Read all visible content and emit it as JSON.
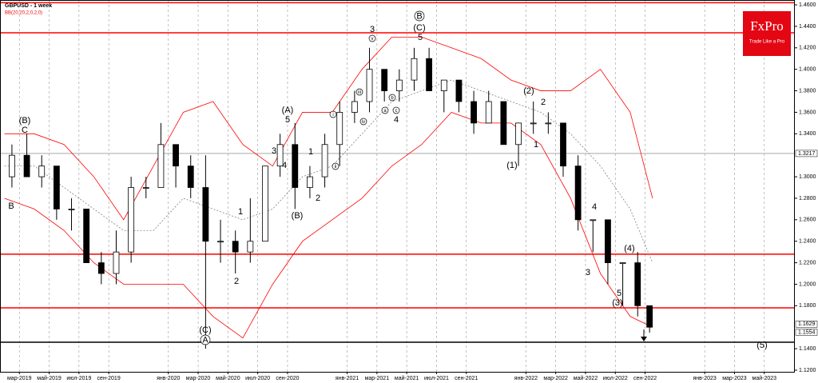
{
  "chart_data": {
    "type": "candlestick",
    "title": "GBPUSD - 1 week",
    "subtitle": "BB(20,20,2,0,2,0)",
    "logo": {
      "brand": "FxPro",
      "slogan": "Trade Like a Pro"
    },
    "xlim": [
      0.7,
      54.05
    ],
    "xticks": [
      {
        "value": 2,
        "label": "мар-2019"
      },
      {
        "value": 4,
        "label": "май-2019"
      },
      {
        "value": 6,
        "label": "июл-2019"
      },
      {
        "value": 8,
        "label": "сен-2019"
      },
      {
        "value": 12,
        "label": "янв-2020"
      },
      {
        "value": 14,
        "label": "мар-2020"
      },
      {
        "value": 16,
        "label": "май-2020"
      },
      {
        "value": 18,
        "label": "июл-2020"
      },
      {
        "value": 20,
        "label": "сен-2020"
      },
      {
        "value": 24,
        "label": "янв-2021"
      },
      {
        "value": 26,
        "label": "мар-2021"
      },
      {
        "value": 28,
        "label": "май-2021"
      },
      {
        "value": 30,
        "label": "июл-2021"
      },
      {
        "value": 32,
        "label": "сен-2021"
      },
      {
        "value": 36,
        "label": "янв-2022"
      },
      {
        "value": 38,
        "label": "мар-2022"
      },
      {
        "value": 40,
        "label": "май-2022"
      },
      {
        "value": 42,
        "label": "июл-2022"
      },
      {
        "value": 44,
        "label": "сен-2022"
      },
      {
        "value": 48,
        "label": "янв-2023"
      },
      {
        "value": 50,
        "label": "мар-2023"
      },
      {
        "value": 52,
        "label": "май-2023"
      }
    ],
    "ylim": [
      1.1185,
      1.4645
    ],
    "yticks": [
      {
        "value": 1.46,
        "label": "1.4600"
      },
      {
        "value": 1.44,
        "label": "1.4400"
      },
      {
        "value": 1.42,
        "label": "1.4200"
      },
      {
        "value": 1.4,
        "label": "1.4000"
      },
      {
        "value": 1.38,
        "label": "1.3800"
      },
      {
        "value": 1.36,
        "label": "1.3600"
      },
      {
        "value": 1.34,
        "label": "1.3400"
      },
      {
        "value": 1.3,
        "label": "1.3000"
      },
      {
        "value": 1.28,
        "label": "1.2800"
      },
      {
        "value": 1.26,
        "label": "1.2600"
      },
      {
        "value": 1.24,
        "label": "1.2400"
      },
      {
        "value": 1.22,
        "label": "1.2200"
      },
      {
        "value": 1.2,
        "label": "1.2000"
      },
      {
        "value": 1.18,
        "label": "1.1800"
      },
      {
        "value": 1.14,
        "label": "1.1400"
      },
      {
        "value": 1.12,
        "label": "1.1200"
      }
    ],
    "price_tags": [
      {
        "value": 1.3217,
        "label": "1.3217"
      },
      {
        "value": 1.1629,
        "label": "1.1629"
      },
      {
        "value": 1.1554,
        "label": "1.1554"
      }
    ],
    "levels": [
      {
        "value": 1.462,
        "color": "#ff0000"
      },
      {
        "value": 1.434,
        "color": "#ff0000"
      },
      {
        "value": 1.228,
        "color": "#ff0000"
      },
      {
        "value": 1.178,
        "color": "#ff0000"
      },
      {
        "value": 1.146,
        "color": "#000000"
      }
    ],
    "candles": {
      "x": [
        1.5,
        2.5,
        3.5,
        4.5,
        5.5,
        6.5,
        7.5,
        8.5,
        9.5,
        10.5,
        11.5,
        12.5,
        13.5,
        14.5,
        15.5,
        16.5,
        17.5,
        18.5,
        19.5,
        20.5,
        21.5,
        22.5,
        23.5,
        24.5,
        25.5,
        26.5,
        27.5,
        28.5,
        29.5,
        30.5,
        31.5,
        32.5,
        33.5,
        34.5,
        35.5,
        36.5,
        37.5,
        38.5,
        39.5,
        40.5,
        41.5,
        42.5,
        43.5,
        44.3
      ],
      "open": [
        1.3,
        1.32,
        1.3,
        1.31,
        1.27,
        1.27,
        1.22,
        1.21,
        1.23,
        1.29,
        1.29,
        1.33,
        1.31,
        1.29,
        1.24,
        1.24,
        1.23,
        1.24,
        1.31,
        1.33,
        1.29,
        1.3,
        1.33,
        1.36,
        1.37,
        1.4,
        1.38,
        1.39,
        1.41,
        1.38,
        1.39,
        1.37,
        1.35,
        1.37,
        1.33,
        1.35,
        1.35,
        1.35,
        1.31,
        1.26,
        1.26,
        1.22,
        1.22,
        1.18
      ],
      "high": [
        1.33,
        1.34,
        1.32,
        1.31,
        1.28,
        1.27,
        1.23,
        1.25,
        1.3,
        1.3,
        1.35,
        1.33,
        1.32,
        1.32,
        1.26,
        1.25,
        1.28,
        1.31,
        1.34,
        1.35,
        1.31,
        1.34,
        1.37,
        1.38,
        1.42,
        1.4,
        1.4,
        1.42,
        1.42,
        1.39,
        1.39,
        1.38,
        1.38,
        1.37,
        1.35,
        1.37,
        1.36,
        1.35,
        1.32,
        1.26,
        1.26,
        1.22,
        1.23,
        1.18
      ],
      "low": [
        1.29,
        1.3,
        1.29,
        1.26,
        1.25,
        1.22,
        1.2,
        1.2,
        1.22,
        1.28,
        1.29,
        1.29,
        1.28,
        1.14,
        1.22,
        1.21,
        1.22,
        1.24,
        1.3,
        1.27,
        1.28,
        1.29,
        1.31,
        1.35,
        1.36,
        1.37,
        1.37,
        1.38,
        1.38,
        1.36,
        1.36,
        1.34,
        1.35,
        1.33,
        1.31,
        1.34,
        1.34,
        1.3,
        1.25,
        1.23,
        1.2,
        1.18,
        1.17,
        1.155
      ],
      "close": [
        1.32,
        1.3,
        1.31,
        1.27,
        1.27,
        1.22,
        1.21,
        1.23,
        1.29,
        1.29,
        1.33,
        1.31,
        1.29,
        1.24,
        1.24,
        1.23,
        1.24,
        1.31,
        1.33,
        1.29,
        1.3,
        1.33,
        1.36,
        1.37,
        1.4,
        1.38,
        1.39,
        1.41,
        1.38,
        1.39,
        1.37,
        1.35,
        1.37,
        1.33,
        1.35,
        1.35,
        1.35,
        1.31,
        1.26,
        1.26,
        1.22,
        1.22,
        1.18,
        1.16
      ]
    },
    "bands": {
      "x": [
        1,
        3,
        5,
        7,
        9,
        11,
        13,
        15,
        17,
        19,
        21,
        23,
        25,
        27,
        29,
        31,
        33,
        35,
        37,
        39,
        41,
        43,
        44.5
      ],
      "series": [
        {
          "color": "#ff0000",
          "values": [
            1.34,
            1.34,
            1.33,
            1.3,
            1.26,
            1.31,
            1.36,
            1.37,
            1.33,
            1.31,
            1.36,
            1.36,
            1.4,
            1.43,
            1.43,
            1.42,
            1.41,
            1.39,
            1.38,
            1.38,
            1.4,
            1.36,
            1.28
          ]
        },
        {
          "color": "#808080",
          "values": [
            1.31,
            1.31,
            1.29,
            1.27,
            1.25,
            1.25,
            1.28,
            1.27,
            1.26,
            1.27,
            1.3,
            1.31,
            1.34,
            1.37,
            1.38,
            1.39,
            1.38,
            1.37,
            1.36,
            1.34,
            1.31,
            1.27,
            1.22
          ]
        },
        {
          "color": "#ff0000",
          "values": [
            1.28,
            1.27,
            1.25,
            1.22,
            1.2,
            1.2,
            1.2,
            1.17,
            1.15,
            1.2,
            1.24,
            1.26,
            1.28,
            1.31,
            1.33,
            1.36,
            1.35,
            1.35,
            1.33,
            1.28,
            1.21,
            1.17,
            1.16
          ]
        }
      ]
    },
    "annotations": [
      "(B)",
      "C",
      "B",
      "3",
      "(C)",
      "5",
      "(A)",
      "5",
      "3",
      "4",
      "1",
      "2",
      "(B)",
      "1",
      "2",
      "(C)",
      "4",
      "(2)",
      "2",
      "1",
      "(1)",
      "4",
      "3",
      "(4)",
      "5",
      "(3)",
      "(5)"
    ],
    "circled": [
      "B",
      "A",
      "v",
      "iii",
      "iv",
      "b",
      "a",
      "c",
      "i",
      "ii"
    ]
  }
}
